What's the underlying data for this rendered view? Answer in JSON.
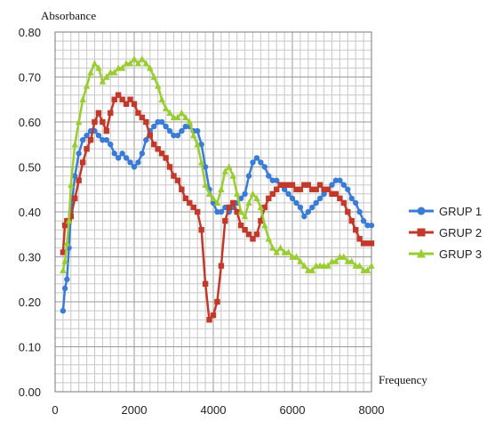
{
  "chart_data": {
    "type": "line",
    "xlabel": "Frequency",
    "ylabel": "Absorbance",
    "xlim": [
      0,
      8000
    ],
    "ylim": [
      0,
      0.8
    ],
    "x_ticks": [
      "0",
      "2000",
      "4000",
      "6000",
      "8000"
    ],
    "y_ticks": [
      "0.00",
      "0.10",
      "0.20",
      "0.30",
      "0.40",
      "0.50",
      "0.60",
      "0.70",
      "0.80"
    ],
    "grid": true,
    "legend_position": "right",
    "series": [
      {
        "name": "GRUP 1",
        "color": "#3a7bd5",
        "marker": "circle",
        "x": [
          200,
          250,
          300,
          350,
          400,
          500,
          600,
          700,
          800,
          900,
          1000,
          1100,
          1200,
          1300,
          1400,
          1500,
          1600,
          1700,
          1800,
          1900,
          2000,
          2100,
          2200,
          2300,
          2400,
          2500,
          2600,
          2700,
          2800,
          2900,
          3000,
          3100,
          3200,
          3300,
          3400,
          3500,
          3600,
          3700,
          3800,
          3900,
          4000,
          4100,
          4200,
          4300,
          4400,
          4500,
          4600,
          4700,
          4800,
          4900,
          5000,
          5100,
          5200,
          5300,
          5400,
          5500,
          5600,
          5700,
          5800,
          5900,
          6000,
          6100,
          6200,
          6300,
          6400,
          6500,
          6600,
          6700,
          6800,
          6900,
          7000,
          7100,
          7200,
          7300,
          7400,
          7500,
          7600,
          7700,
          7800,
          7900,
          8000
        ],
        "values": [
          0.18,
          0.23,
          0.25,
          0.32,
          0.4,
          0.48,
          0.53,
          0.56,
          0.57,
          0.58,
          0.58,
          0.57,
          0.56,
          0.56,
          0.55,
          0.53,
          0.52,
          0.53,
          0.52,
          0.51,
          0.5,
          0.51,
          0.53,
          0.56,
          0.58,
          0.59,
          0.6,
          0.6,
          0.59,
          0.58,
          0.57,
          0.57,
          0.58,
          0.59,
          0.59,
          0.58,
          0.58,
          0.55,
          0.5,
          0.45,
          0.42,
          0.4,
          0.4,
          0.41,
          0.4,
          0.41,
          0.42,
          0.43,
          0.44,
          0.48,
          0.51,
          0.52,
          0.51,
          0.5,
          0.48,
          0.47,
          0.47,
          0.46,
          0.45,
          0.44,
          0.43,
          0.42,
          0.41,
          0.39,
          0.4,
          0.41,
          0.42,
          0.43,
          0.44,
          0.45,
          0.46,
          0.47,
          0.47,
          0.46,
          0.45,
          0.43,
          0.42,
          0.4,
          0.38,
          0.37,
          0.37
        ]
      },
      {
        "name": "GRUP 2",
        "color": "#c0392b",
        "marker": "square",
        "x": [
          200,
          250,
          300,
          350,
          400,
          500,
          600,
          700,
          800,
          900,
          1000,
          1100,
          1200,
          1300,
          1400,
          1500,
          1600,
          1700,
          1800,
          1900,
          2000,
          2100,
          2200,
          2300,
          2400,
          2500,
          2600,
          2700,
          2800,
          2900,
          3000,
          3100,
          3200,
          3300,
          3400,
          3500,
          3600,
          3700,
          3800,
          3900,
          4000,
          4100,
          4200,
          4300,
          4400,
          4500,
          4600,
          4700,
          4800,
          4900,
          5000,
          5100,
          5200,
          5300,
          5400,
          5500,
          5600,
          5700,
          5800,
          5900,
          6000,
          6100,
          6200,
          6300,
          6400,
          6500,
          6600,
          6700,
          6800,
          6900,
          7000,
          7100,
          7200,
          7300,
          7400,
          7500,
          7600,
          7700,
          7800,
          7900,
          8000
        ],
        "values": [
          0.31,
          0.37,
          0.38,
          0.38,
          0.39,
          0.43,
          0.47,
          0.51,
          0.54,
          0.56,
          0.6,
          0.62,
          0.6,
          0.58,
          0.62,
          0.65,
          0.66,
          0.65,
          0.64,
          0.65,
          0.64,
          0.62,
          0.61,
          0.6,
          0.57,
          0.55,
          0.54,
          0.53,
          0.52,
          0.5,
          0.48,
          0.47,
          0.45,
          0.43,
          0.42,
          0.41,
          0.4,
          0.36,
          0.24,
          0.16,
          0.17,
          0.2,
          0.28,
          0.38,
          0.41,
          0.42,
          0.4,
          0.37,
          0.36,
          0.35,
          0.34,
          0.35,
          0.38,
          0.41,
          0.43,
          0.44,
          0.45,
          0.46,
          0.46,
          0.46,
          0.46,
          0.45,
          0.45,
          0.46,
          0.46,
          0.45,
          0.45,
          0.46,
          0.45,
          0.45,
          0.44,
          0.44,
          0.43,
          0.42,
          0.4,
          0.38,
          0.36,
          0.34,
          0.33,
          0.33,
          0.33
        ]
      },
      {
        "name": "GRUP 3",
        "color": "#9acd32",
        "marker": "triangle",
        "x": [
          200,
          250,
          300,
          350,
          400,
          500,
          600,
          700,
          800,
          900,
          1000,
          1100,
          1200,
          1300,
          1400,
          1500,
          1600,
          1700,
          1800,
          1900,
          2000,
          2100,
          2200,
          2300,
          2400,
          2500,
          2600,
          2700,
          2800,
          2900,
          3000,
          3100,
          3200,
          3300,
          3400,
          3500,
          3600,
          3700,
          3800,
          3900,
          4000,
          4100,
          4200,
          4300,
          4400,
          4500,
          4600,
          4700,
          4800,
          4900,
          5000,
          5100,
          5200,
          5300,
          5400,
          5500,
          5600,
          5700,
          5800,
          5900,
          6000,
          6100,
          6200,
          6300,
          6400,
          6500,
          6600,
          6700,
          6800,
          6900,
          7000,
          7100,
          7200,
          7300,
          7400,
          7500,
          7600,
          7700,
          7800,
          7900,
          8000
        ],
        "values": [
          0.27,
          0.29,
          0.33,
          0.38,
          0.46,
          0.55,
          0.6,
          0.65,
          0.68,
          0.71,
          0.73,
          0.72,
          0.69,
          0.7,
          0.71,
          0.71,
          0.72,
          0.72,
          0.73,
          0.73,
          0.74,
          0.73,
          0.74,
          0.73,
          0.72,
          0.7,
          0.68,
          0.65,
          0.63,
          0.62,
          0.61,
          0.61,
          0.62,
          0.61,
          0.6,
          0.57,
          0.55,
          0.51,
          0.46,
          0.44,
          0.43,
          0.42,
          0.45,
          0.49,
          0.5,
          0.48,
          0.44,
          0.4,
          0.39,
          0.42,
          0.44,
          0.43,
          0.41,
          0.37,
          0.34,
          0.32,
          0.31,
          0.32,
          0.31,
          0.31,
          0.3,
          0.3,
          0.29,
          0.28,
          0.27,
          0.27,
          0.28,
          0.28,
          0.28,
          0.28,
          0.29,
          0.29,
          0.3,
          0.3,
          0.29,
          0.29,
          0.28,
          0.28,
          0.27,
          0.27,
          0.28
        ]
      }
    ]
  }
}
